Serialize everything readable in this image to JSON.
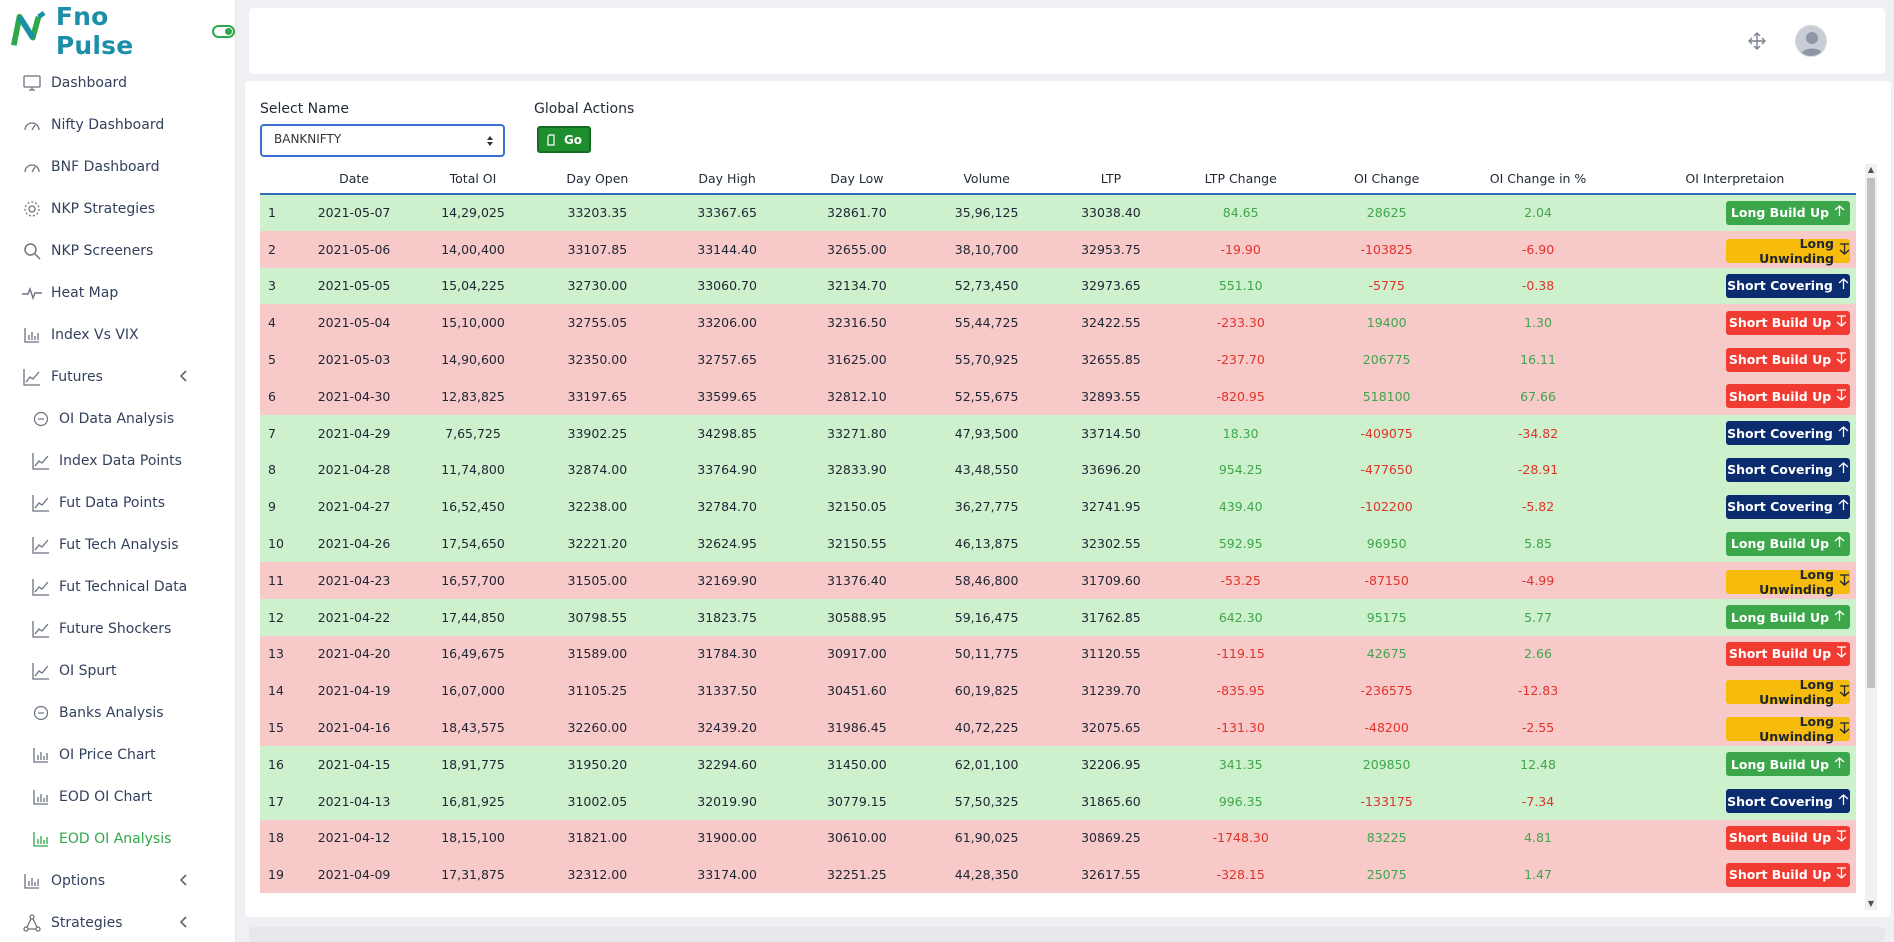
{
  "brand": {
    "name": "Fno Pulse"
  },
  "colors": {
    "brand_teal": "#1c8fa8",
    "green": "#3ca64a",
    "red": "#f03b32",
    "amber": "#f7bb0c",
    "navy": "#0b2c6f",
    "row_green": "#cdf0cd",
    "row_red": "#f8c9c9"
  },
  "sidebar": {
    "items": [
      {
        "label": "Dashboard",
        "icon": "monitor-icon"
      },
      {
        "label": "Nifty Dashboard",
        "icon": "speedometer-icon"
      },
      {
        "label": "BNF Dashboard",
        "icon": "speedometer-icon"
      },
      {
        "label": "NKP Strategies",
        "icon": "gear-icon"
      },
      {
        "label": "NKP Screeners",
        "icon": "search-icon"
      },
      {
        "label": "Heat Map",
        "icon": "pulse-icon"
      },
      {
        "label": "Index Vs VIX",
        "icon": "bar-chart-icon"
      },
      {
        "label": "Futures",
        "icon": "line-chart-icon"
      },
      {
        "label": "OI Data Analysis",
        "icon": "circle-icon"
      },
      {
        "label": "Index Data Points",
        "icon": "line-chart-icon"
      },
      {
        "label": "Fut Data Points",
        "icon": "line-chart-icon"
      },
      {
        "label": "Fut Tech Analysis",
        "icon": "line-chart-icon"
      },
      {
        "label": "Fut Technical Data",
        "icon": "line-chart-icon"
      },
      {
        "label": "Future Shockers",
        "icon": "line-chart-icon"
      },
      {
        "label": "OI Spurt",
        "icon": "line-chart-icon"
      },
      {
        "label": "Banks Analysis",
        "icon": "circle-icon"
      },
      {
        "label": "OI Price Chart",
        "icon": "bar-chart-icon"
      },
      {
        "label": "EOD OI Chart",
        "icon": "bar-chart-icon"
      },
      {
        "label": "EOD OI Analysis",
        "icon": "bar-chart-icon"
      },
      {
        "label": "Options",
        "icon": "bar-chart-icon"
      },
      {
        "label": "Strategies",
        "icon": "network-icon"
      }
    ]
  },
  "filters": {
    "select_label": "Select Name",
    "select_value": "BANKNIFTY",
    "global_label": "Global Actions",
    "go_label": "Go"
  },
  "table": {
    "headers": [
      "",
      "Date",
      "Total OI",
      "Day Open",
      "Day High",
      "Day Low",
      "Volume",
      "LTP",
      "LTP Change",
      "OI Change",
      "OI Change in %",
      "OI Interpretaion"
    ],
    "rows": [
      {
        "n": "1",
        "date": "2021-05-07",
        "oi": "14,29,025",
        "open": "33203.35",
        "high": "33367.65",
        "low": "32861.70",
        "vol": "35,96,125",
        "ltp": "33038.40",
        "ltpc": "84.65",
        "oic": "28625",
        "oip": "2.04",
        "interp": "Long Build Up"
      },
      {
        "n": "2",
        "date": "2021-05-06",
        "oi": "14,00,400",
        "open": "33107.85",
        "high": "33144.40",
        "low": "32655.00",
        "vol": "38,10,700",
        "ltp": "32953.75",
        "ltpc": "-19.90",
        "oic": "-103825",
        "oip": "-6.90",
        "interp": "Long Unwinding"
      },
      {
        "n": "3",
        "date": "2021-05-05",
        "oi": "15,04,225",
        "open": "32730.00",
        "high": "33060.70",
        "low": "32134.70",
        "vol": "52,73,450",
        "ltp": "32973.65",
        "ltpc": "551.10",
        "oic": "-5775",
        "oip": "-0.38",
        "interp": "Short Covering"
      },
      {
        "n": "4",
        "date": "2021-05-04",
        "oi": "15,10,000",
        "open": "32755.05",
        "high": "33206.00",
        "low": "32316.50",
        "vol": "55,44,725",
        "ltp": "32422.55",
        "ltpc": "-233.30",
        "oic": "19400",
        "oip": "1.30",
        "interp": "Short Build Up"
      },
      {
        "n": "5",
        "date": "2021-05-03",
        "oi": "14,90,600",
        "open": "32350.00",
        "high": "32757.65",
        "low": "31625.00",
        "vol": "55,70,925",
        "ltp": "32655.85",
        "ltpc": "-237.70",
        "oic": "206775",
        "oip": "16.11",
        "interp": "Short Build Up"
      },
      {
        "n": "6",
        "date": "2021-04-30",
        "oi": "12,83,825",
        "open": "33197.65",
        "high": "33599.65",
        "low": "32812.10",
        "vol": "52,55,675",
        "ltp": "32893.55",
        "ltpc": "-820.95",
        "oic": "518100",
        "oip": "67.66",
        "interp": "Short Build Up"
      },
      {
        "n": "7",
        "date": "2021-04-29",
        "oi": "7,65,725",
        "open": "33902.25",
        "high": "34298.85",
        "low": "33271.80",
        "vol": "47,93,500",
        "ltp": "33714.50",
        "ltpc": "18.30",
        "oic": "-409075",
        "oip": "-34.82",
        "interp": "Short Covering"
      },
      {
        "n": "8",
        "date": "2021-04-28",
        "oi": "11,74,800",
        "open": "32874.00",
        "high": "33764.90",
        "low": "32833.90",
        "vol": "43,48,550",
        "ltp": "33696.20",
        "ltpc": "954.25",
        "oic": "-477650",
        "oip": "-28.91",
        "interp": "Short Covering"
      },
      {
        "n": "9",
        "date": "2021-04-27",
        "oi": "16,52,450",
        "open": "32238.00",
        "high": "32784.70",
        "low": "32150.05",
        "vol": "36,27,775",
        "ltp": "32741.95",
        "ltpc": "439.40",
        "oic": "-102200",
        "oip": "-5.82",
        "interp": "Short Covering"
      },
      {
        "n": "10",
        "date": "2021-04-26",
        "oi": "17,54,650",
        "open": "32221.20",
        "high": "32624.95",
        "low": "32150.55",
        "vol": "46,13,875",
        "ltp": "32302.55",
        "ltpc": "592.95",
        "oic": "96950",
        "oip": "5.85",
        "interp": "Long Build Up"
      },
      {
        "n": "11",
        "date": "2021-04-23",
        "oi": "16,57,700",
        "open": "31505.00",
        "high": "32169.90",
        "low": "31376.40",
        "vol": "58,46,800",
        "ltp": "31709.60",
        "ltpc": "-53.25",
        "oic": "-87150",
        "oip": "-4.99",
        "interp": "Long Unwinding"
      },
      {
        "n": "12",
        "date": "2021-04-22",
        "oi": "17,44,850",
        "open": "30798.55",
        "high": "31823.75",
        "low": "30588.95",
        "vol": "59,16,475",
        "ltp": "31762.85",
        "ltpc": "642.30",
        "oic": "95175",
        "oip": "5.77",
        "interp": "Long Build Up"
      },
      {
        "n": "13",
        "date": "2021-04-20",
        "oi": "16,49,675",
        "open": "31589.00",
        "high": "31784.30",
        "low": "30917.00",
        "vol": "50,11,775",
        "ltp": "31120.55",
        "ltpc": "-119.15",
        "oic": "42675",
        "oip": "2.66",
        "interp": "Short Build Up"
      },
      {
        "n": "14",
        "date": "2021-04-19",
        "oi": "16,07,000",
        "open": "31105.25",
        "high": "31337.50",
        "low": "30451.60",
        "vol": "60,19,825",
        "ltp": "31239.70",
        "ltpc": "-835.95",
        "oic": "-236575",
        "oip": "-12.83",
        "interp": "Long Unwinding"
      },
      {
        "n": "15",
        "date": "2021-04-16",
        "oi": "18,43,575",
        "open": "32260.00",
        "high": "32439.20",
        "low": "31986.45",
        "vol": "40,72,225",
        "ltp": "32075.65",
        "ltpc": "-131.30",
        "oic": "-48200",
        "oip": "-2.55",
        "interp": "Long Unwinding"
      },
      {
        "n": "16",
        "date": "2021-04-15",
        "oi": "18,91,775",
        "open": "31950.20",
        "high": "32294.60",
        "low": "31450.00",
        "vol": "62,01,100",
        "ltp": "32206.95",
        "ltpc": "341.35",
        "oic": "209850",
        "oip": "12.48",
        "interp": "Long Build Up"
      },
      {
        "n": "17",
        "date": "2021-04-13",
        "oi": "16,81,925",
        "open": "31002.05",
        "high": "32019.90",
        "low": "30779.15",
        "vol": "57,50,325",
        "ltp": "31865.60",
        "ltpc": "996.35",
        "oic": "-133175",
        "oip": "-7.34",
        "interp": "Short Covering"
      },
      {
        "n": "18",
        "date": "2021-04-12",
        "oi": "18,15,100",
        "open": "31821.00",
        "high": "31900.00",
        "low": "30610.00",
        "vol": "61,90,025",
        "ltp": "30869.25",
        "ltpc": "-1748.30",
        "oic": "83225",
        "oip": "4.81",
        "interp": "Short Build Up"
      },
      {
        "n": "19",
        "date": "2021-04-09",
        "oi": "17,31,875",
        "open": "32312.00",
        "high": "33174.00",
        "low": "32251.25",
        "vol": "44,28,350",
        "ltp": "32617.55",
        "ltpc": "-328.15",
        "oic": "25075",
        "oip": "1.47",
        "interp": "Short Build Up"
      }
    ]
  }
}
